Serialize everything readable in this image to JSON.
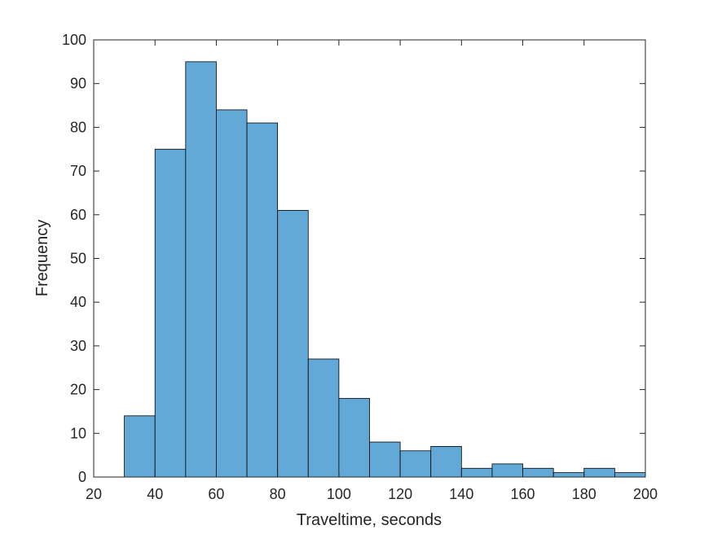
{
  "chart_data": {
    "type": "bar",
    "subtype": "histogram",
    "bin_edges": [
      30,
      40,
      50,
      60,
      70,
      80,
      90,
      100,
      110,
      120,
      130,
      140,
      150,
      160,
      170,
      180,
      190,
      200
    ],
    "values": [
      14,
      75,
      95,
      84,
      81,
      61,
      27,
      18,
      8,
      6,
      7,
      2,
      3,
      2,
      1,
      2,
      1
    ],
    "title": "",
    "xlabel": "Traveltime, seconds",
    "ylabel": "Frequency",
    "xlim": [
      20,
      200
    ],
    "ylim": [
      0,
      100
    ],
    "xticks": [
      "20",
      "40",
      "60",
      "80",
      "100",
      "120",
      "140",
      "160",
      "180",
      "200"
    ],
    "yticks": [
      "0",
      "10",
      "20",
      "30",
      "40",
      "50",
      "60",
      "70",
      "80",
      "90",
      "100"
    ],
    "grid": false,
    "bar_color": "#62a9d8",
    "edge_color": "#000000"
  }
}
